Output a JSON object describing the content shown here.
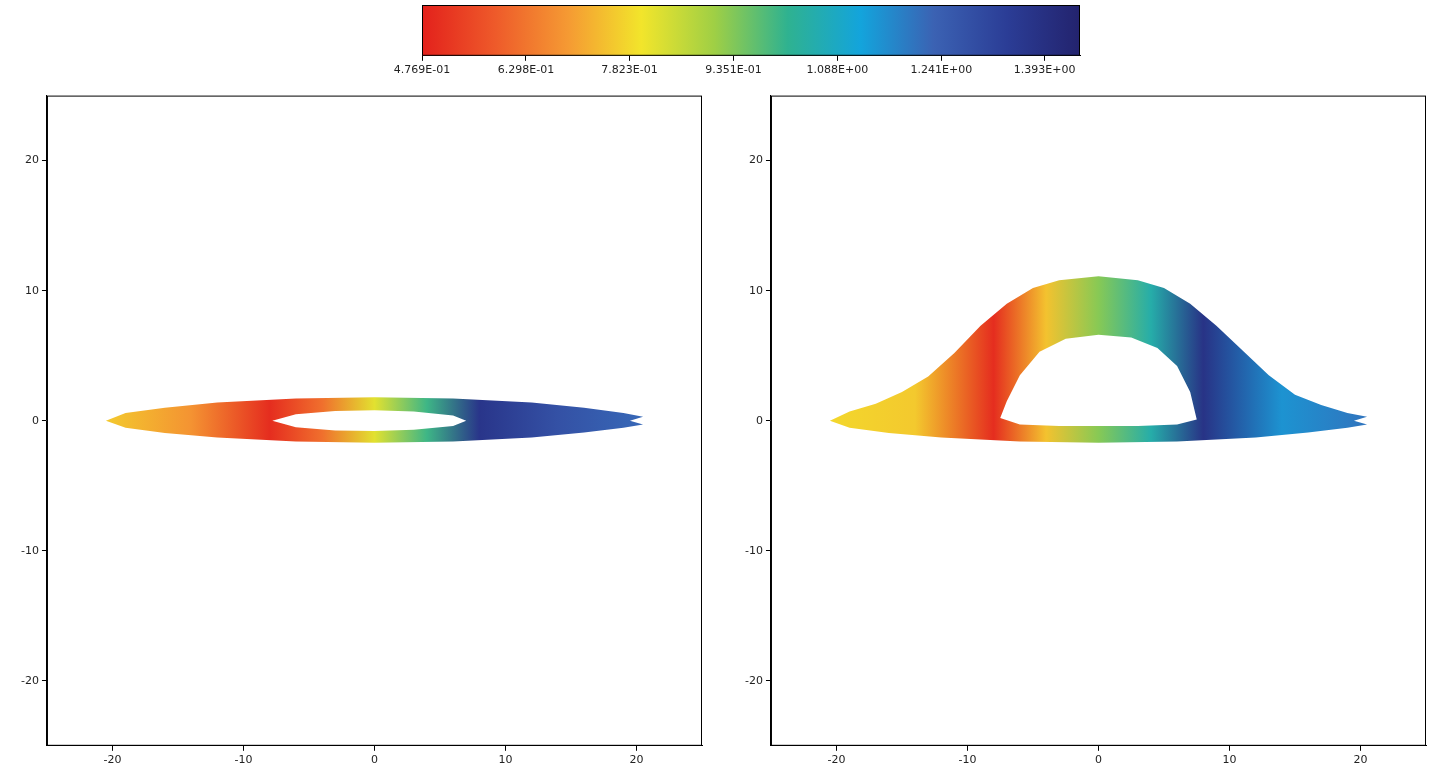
{
  "chart_data": [
    {
      "type": "colorbar",
      "xlim": [
        0.4769,
        1.445
      ],
      "xticks": [
        {
          "value": 0.4769,
          "label": "4.769E-01"
        },
        {
          "value": 0.6298,
          "label": "6.298E-01"
        },
        {
          "value": 0.7823,
          "label": "7.823E-01"
        },
        {
          "value": 0.9351,
          "label": "9.351E-01"
        },
        {
          "value": 1.088,
          "label": "1.088E+00"
        },
        {
          "value": 1.241,
          "label": "1.241E+00"
        },
        {
          "value": 1.393,
          "label": "1.393E+00"
        }
      ],
      "colors": [
        "#e3211c",
        "#ee5a2a",
        "#f59a33",
        "#f2e52b",
        "#9fcf45",
        "#2fb290",
        "#13a4dc",
        "#3b62b3",
        "#2b3d96",
        "#23236e"
      ]
    },
    {
      "type": "image",
      "xlim": [
        -25,
        25
      ],
      "ylim": [
        -25,
        25
      ],
      "xticks": [
        -20,
        -10,
        0,
        10,
        20
      ],
      "yticks": [
        -20,
        -10,
        0,
        10,
        20
      ],
      "grid": false,
      "disk": {
        "x": [
          -20.5,
          -19,
          -16,
          -12,
          -6,
          0,
          6,
          12,
          16,
          19,
          20.5,
          19.5,
          20.5,
          19,
          16,
          12,
          6,
          0,
          -6,
          -12,
          -16,
          -19
        ],
        "y": [
          0,
          0.6,
          1.0,
          1.4,
          1.7,
          1.8,
          1.7,
          1.4,
          1.0,
          0.6,
          0.3,
          0,
          -0.3,
          -0.55,
          -0.9,
          -1.3,
          -1.6,
          -1.7,
          -1.6,
          -1.3,
          -0.95,
          -0.55
        ]
      },
      "hole": {
        "x": [
          -7.8,
          -6,
          -3,
          0,
          3,
          6,
          7,
          6,
          3,
          0,
          -3,
          -6
        ],
        "y": [
          0,
          0.5,
          0.75,
          0.8,
          0.7,
          0.4,
          0,
          -0.4,
          -0.7,
          -0.8,
          -0.75,
          -0.5
        ]
      },
      "shading": {
        "x": [
          -20.5,
          -14,
          -8,
          -4,
          0,
          4,
          8,
          14,
          20.5
        ],
        "values": [
          0.76,
          0.68,
          0.5,
          0.62,
          0.82,
          1.0,
          1.37,
          1.28,
          1.22
        ]
      }
    },
    {
      "type": "image",
      "xlim": [
        -25,
        25
      ],
      "ylim": [
        -25,
        25
      ],
      "xticks": [
        -20,
        -10,
        0,
        10,
        20
      ],
      "yticks": [
        -20,
        -10,
        0,
        10,
        20
      ],
      "grid": false,
      "disk": {
        "x": [
          -20.5,
          -19,
          -17,
          -15,
          -13,
          -11,
          -9,
          -7,
          -5,
          -3,
          0,
          3,
          5,
          7,
          9,
          11,
          13,
          15,
          17,
          19,
          20.5,
          19.5,
          20.5,
          19,
          16,
          12,
          6,
          0,
          -6,
          -12,
          -16,
          -19
        ],
        "y": [
          0,
          0.7,
          1.3,
          2.2,
          3.4,
          5.2,
          7.3,
          9.0,
          10.2,
          10.8,
          11.1,
          10.8,
          10.2,
          9.0,
          7.3,
          5.4,
          3.5,
          2.0,
          1.2,
          0.6,
          0.3,
          0,
          -0.3,
          -0.55,
          -0.9,
          -1.3,
          -1.6,
          -1.7,
          -1.6,
          -1.3,
          -0.95,
          -0.55
        ]
      },
      "hole": {
        "x": [
          -7.5,
          -7,
          -6,
          -4.5,
          -2.5,
          0,
          2.5,
          4.5,
          6,
          7,
          7.5,
          6,
          3,
          0,
          -3,
          -6
        ],
        "y": [
          0.2,
          1.5,
          3.5,
          5.3,
          6.3,
          6.6,
          6.4,
          5.6,
          4.2,
          2.2,
          0.1,
          -0.3,
          -0.4,
          -0.4,
          -0.4,
          -0.3
        ]
      },
      "shading": {
        "x": [
          -20.5,
          -14,
          -8,
          -4,
          0,
          4,
          8,
          14,
          20.5
        ],
        "values": [
          0.78,
          0.76,
          0.5,
          0.75,
          0.93,
          1.05,
          1.38,
          1.15,
          1.2
        ]
      }
    }
  ]
}
